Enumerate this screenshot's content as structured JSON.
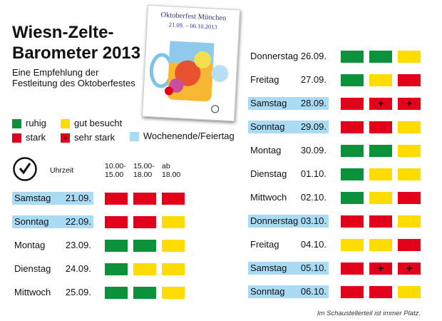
{
  "title": "Wiesn-Zelte-Barometer 2013",
  "subtitle": "Eine Empfehlung der Festleitung des Oktoberfestes",
  "poster": {
    "title": "Oktoberfest München",
    "dates": "21.09. – 06.10.2013"
  },
  "colors": {
    "green": "#0a9139",
    "yellow": "#ffdb00",
    "red": "#e2001a",
    "weekend": "#a9dbf5"
  },
  "legend": {
    "green": "ruhig",
    "yellow": "gut besucht",
    "red": "stark",
    "red_plus": "sehr stark",
    "weekend": "Wochenende/Feiertag"
  },
  "header": {
    "clock_icon": "clock-icon",
    "time_label": "Uhrzeit",
    "slots": [
      [
        "10.00-",
        "15.00"
      ],
      [
        "15.00-",
        "18.00"
      ],
      [
        "ab",
        "18.00"
      ]
    ]
  },
  "days_left": [
    {
      "day": "Samstag",
      "date": "21.09.",
      "weekend": true,
      "levels": [
        "red",
        "red",
        "red"
      ]
    },
    {
      "day": "Sonntag",
      "date": "22.09.",
      "weekend": true,
      "levels": [
        "red",
        "red",
        "yellow"
      ]
    },
    {
      "day": "Montag",
      "date": "23.09.",
      "weekend": false,
      "levels": [
        "green",
        "green",
        "yellow"
      ]
    },
    {
      "day": "Dienstag",
      "date": "24.09.",
      "weekend": false,
      "levels": [
        "green",
        "yellow",
        "yellow"
      ]
    },
    {
      "day": "Mittwoch",
      "date": "25.09.",
      "weekend": false,
      "levels": [
        "green",
        "green",
        "yellow"
      ]
    }
  ],
  "days_right": [
    {
      "day": "Donnerstag",
      "date": "26.09.",
      "weekend": false,
      "levels": [
        "green",
        "green",
        "yellow"
      ]
    },
    {
      "day": "Freitag",
      "date": "27.09.",
      "weekend": false,
      "levels": [
        "green",
        "yellow",
        "red"
      ]
    },
    {
      "day": "Samstag",
      "date": "28.09.",
      "weekend": true,
      "levels": [
        "red",
        "red_plus",
        "red_plus"
      ]
    },
    {
      "day": "Sonntag",
      "date": "29.09.",
      "weekend": true,
      "levels": [
        "red",
        "red",
        "yellow"
      ]
    },
    {
      "day": "Montag",
      "date": "30.09.",
      "weekend": false,
      "levels": [
        "green",
        "green",
        "yellow"
      ]
    },
    {
      "day": "Dienstag",
      "date": "01.10.",
      "weekend": false,
      "levels": [
        "green",
        "yellow",
        "yellow"
      ]
    },
    {
      "day": "Mittwoch",
      "date": "02.10.",
      "weekend": false,
      "levels": [
        "green",
        "yellow",
        "red"
      ]
    },
    {
      "day": "Donnerstag",
      "date": "03.10.",
      "weekend": true,
      "levels": [
        "red",
        "red",
        "yellow"
      ]
    },
    {
      "day": "Freitag",
      "date": "04.10.",
      "weekend": false,
      "levels": [
        "yellow",
        "yellow",
        "red"
      ]
    },
    {
      "day": "Samstag",
      "date": "05.10.",
      "weekend": true,
      "levels": [
        "red",
        "red_plus",
        "red_plus"
      ]
    },
    {
      "day": "Sonntag",
      "date": "06.10.",
      "weekend": true,
      "levels": [
        "red",
        "red",
        "yellow"
      ]
    }
  ],
  "footnote": "Im Schaustellerteil ist immer Platz."
}
